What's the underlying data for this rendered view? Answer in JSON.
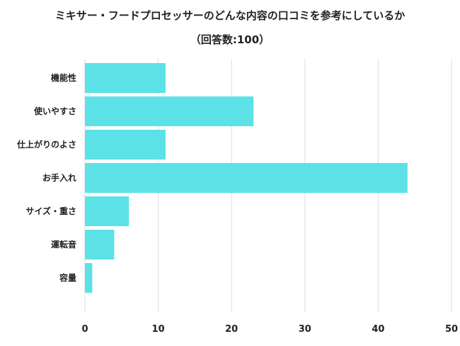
{
  "chart_data": {
    "type": "bar",
    "orientation": "horizontal",
    "title": "ミキサー・フードプロセッサーのどんな内容の口コミを参考にしているか",
    "subtitle": "（回答数:100）",
    "categories": [
      "機能性",
      "使いやすさ",
      "仕上がりのよさ",
      "お手入れ",
      "サイズ・重さ",
      "運転音",
      "容量"
    ],
    "values": [
      11,
      23,
      11,
      44,
      6,
      4,
      1
    ],
    "xlim": [
      0,
      50
    ],
    "xticks": [
      "0",
      "10",
      "20",
      "30",
      "40",
      "50"
    ],
    "grid": true,
    "bar_color": "#5ce1e6",
    "grid_color": "#dddddd"
  }
}
